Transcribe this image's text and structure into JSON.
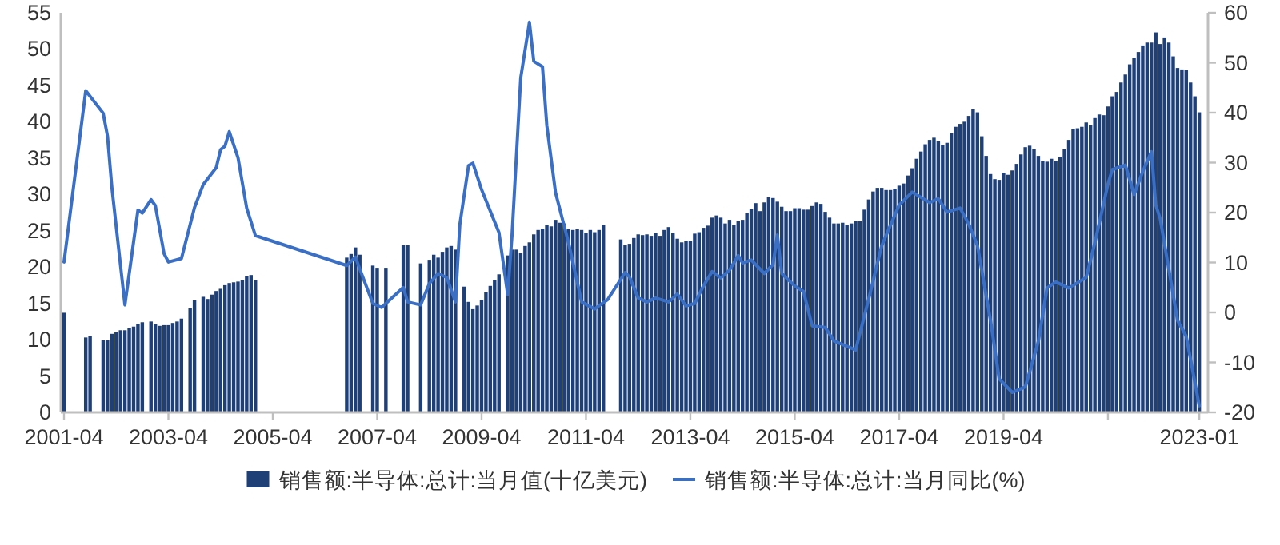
{
  "chart_data": {
    "type": "bar",
    "xlim": [
      "2001-04",
      "2023-03"
    ],
    "xticks": [
      "2001-04",
      "2003-04",
      "2005-04",
      "2007-04",
      "2009-04",
      "2011-04",
      "2013-04",
      "2015-04",
      "2017-04",
      "2019-04",
      {
        "value": "2021-04",
        "label": null
      },
      "2023-01"
    ],
    "ylim": [
      0,
      55
    ],
    "yticks": [
      0,
      5,
      10,
      15,
      20,
      25,
      30,
      35,
      40,
      45,
      50,
      55
    ],
    "y2lim": [
      -20,
      60
    ],
    "y2ticks": [
      -20,
      -10,
      0,
      10,
      20,
      30,
      40,
      50,
      60
    ],
    "grid": false,
    "legend": "bottom",
    "series": [
      {
        "name": "销售额:半导体:总计:当月值(十亿美元)",
        "color": "#1f3f77",
        "x": [
          "2001-04",
          "2001-09",
          "2001-10",
          "2002-01",
          "2002-02",
          "2002-03",
          "2002-04",
          "2002-05",
          "2002-06",
          "2002-07",
          "2002-08",
          "2002-09",
          "2002-10",
          "2002-12",
          "2003-01",
          "2003-02",
          "2003-03",
          "2003-04",
          "2003-05",
          "2003-06",
          "2003-07",
          "2003-09",
          "2003-10",
          "2003-12",
          "2004-01",
          "2004-02",
          "2004-03",
          "2004-04",
          "2004-05",
          "2004-06",
          "2004-07",
          "2004-08",
          "2004-09",
          "2004-10",
          "2004-11",
          "2004-12",
          "2006-09",
          "2006-10",
          "2006-11",
          "2006-12",
          "2007-03",
          "2007-04",
          "2007-06",
          "2007-10",
          "2007-11",
          "2008-02",
          "2008-04",
          "2008-05",
          "2008-06",
          "2008-07",
          "2008-08",
          "2008-09",
          "2008-10",
          "2008-12",
          "2009-01",
          "2009-02",
          "2009-03",
          "2009-04",
          "2009-05",
          "2009-06",
          "2009-07",
          "2009-08",
          "2009-10",
          "2009-11",
          "2009-12",
          "2010-01",
          "2010-02",
          "2010-03",
          "2010-04",
          "2010-05",
          "2010-06",
          "2010-07",
          "2010-08",
          "2010-09",
          "2010-10",
          "2010-11",
          "2010-12",
          "2011-01",
          "2011-02",
          "2011-03",
          "2011-04",
          "2011-05",
          "2011-06",
          "2011-07",
          "2011-08",
          "2011-12",
          "2012-01",
          "2012-02",
          "2012-03",
          "2012-04",
          "2012-05",
          "2012-06",
          "2012-07",
          "2012-08",
          "2012-09",
          "2012-10",
          "2012-11",
          "2012-12",
          "2013-01",
          "2013-02",
          "2013-03",
          "2013-04",
          "2013-05",
          "2013-06",
          "2013-07",
          "2013-08",
          "2013-09",
          "2013-10",
          "2013-11",
          "2013-12",
          "2014-01",
          "2014-02",
          "2014-03",
          "2014-04",
          "2014-05",
          "2014-06",
          "2014-07",
          "2014-08",
          "2014-09",
          "2014-10",
          "2014-11",
          "2014-12",
          "2015-01",
          "2015-02",
          "2015-03",
          "2015-04",
          "2015-05",
          "2015-06",
          "2015-07",
          "2015-08",
          "2015-09",
          "2015-10",
          "2015-11",
          "2015-12",
          "2016-01",
          "2016-02",
          "2016-03",
          "2016-04",
          "2016-05",
          "2016-06",
          "2016-07",
          "2016-08",
          "2016-09",
          "2016-10",
          "2016-11",
          "2016-12",
          "2017-01",
          "2017-02",
          "2017-03",
          "2017-04",
          "2017-05",
          "2017-06",
          "2017-07",
          "2017-08",
          "2017-09",
          "2017-10",
          "2017-11",
          "2017-12",
          "2018-01",
          "2018-02",
          "2018-03",
          "2018-04",
          "2018-05",
          "2018-06",
          "2018-07",
          "2018-08",
          "2018-09",
          "2018-10",
          "2018-11",
          "2018-12",
          "2019-01",
          "2019-02",
          "2019-03",
          "2019-04",
          "2019-05",
          "2019-06",
          "2019-07",
          "2019-08",
          "2019-09",
          "2019-10",
          "2019-11",
          "2019-12",
          "2020-01",
          "2020-02",
          "2020-03",
          "2020-04",
          "2020-05",
          "2020-06",
          "2020-07",
          "2020-08",
          "2020-09",
          "2020-10",
          "2020-11",
          "2020-12",
          "2021-01",
          "2021-02",
          "2021-03",
          "2021-04",
          "2021-05",
          "2021-06",
          "2021-07",
          "2021-08",
          "2021-09",
          "2021-10",
          "2021-11",
          "2021-12",
          "2022-01",
          "2022-02",
          "2022-03",
          "2022-04",
          "2022-05",
          "2022-06",
          "2022-07",
          "2022-08",
          "2022-09",
          "2022-10",
          "2022-11",
          "2022-12",
          "2023-01"
        ],
        "values": [
          13.7,
          10.3,
          10.5,
          9.9,
          9.9,
          10.8,
          11.0,
          11.3,
          11.3,
          11.6,
          11.8,
          12.2,
          12.4,
          12.5,
          12.1,
          11.9,
          12.0,
          12.0,
          12.3,
          12.5,
          12.9,
          14.3,
          15.4,
          15.9,
          15.6,
          16.2,
          16.7,
          17.0,
          17.5,
          17.8,
          17.9,
          18.0,
          18.2,
          18.7,
          18.9,
          18.2,
          21.3,
          21.8,
          22.7,
          21.7,
          20.2,
          19.9,
          19.9,
          23.0,
          23.0,
          20.5,
          21.0,
          21.7,
          21.3,
          22.1,
          22.7,
          22.9,
          22.4,
          17.3,
          15.2,
          14.2,
          14.7,
          15.5,
          16.5,
          17.4,
          18.2,
          19.0,
          21.6,
          22.4,
          22.4,
          21.9,
          22.9,
          23.4,
          24.5,
          25.1,
          25.3,
          25.8,
          25.6,
          26.5,
          26.1,
          26.0,
          25.2,
          25.1,
          25.2,
          25.1,
          24.7,
          25.1,
          24.8,
          25.1,
          25.8,
          23.8,
          23.0,
          23.2,
          24.0,
          24.5,
          24.4,
          24.5,
          24.3,
          24.7,
          24.3,
          25.1,
          25.5,
          24.7,
          23.9,
          23.4,
          23.6,
          23.6,
          24.6,
          24.8,
          25.4,
          25.7,
          26.8,
          27.1,
          26.8,
          26.0,
          26.5,
          25.8,
          26.3,
          26.5,
          27.4,
          28.0,
          28.8,
          27.7,
          28.9,
          29.6,
          29.5,
          29.0,
          28.3,
          27.7,
          27.7,
          28.1,
          28.1,
          27.9,
          27.9,
          28.4,
          28.9,
          28.7,
          27.6,
          26.8,
          26.0,
          26.0,
          26.1,
          25.8,
          26.0,
          26.3,
          26.3,
          27.9,
          29.3,
          30.4,
          30.9,
          30.9,
          30.6,
          30.6,
          30.8,
          31.2,
          31.5,
          32.6,
          33.6,
          34.9,
          35.9,
          36.9,
          37.5,
          37.8,
          37.3,
          36.8,
          37.1,
          38.4,
          39.3,
          39.7,
          40.0,
          40.8,
          41.7,
          41.3,
          38.0,
          35.3,
          32.8,
          32.1,
          32.0,
          33.0,
          32.7,
          33.3,
          34.2,
          35.5,
          36.5,
          36.7,
          36.2,
          35.3,
          34.6,
          34.5,
          34.9,
          34.6,
          35.2,
          36.2,
          37.5,
          39.0,
          39.1,
          39.3,
          39.9,
          39.5,
          40.5,
          41.0,
          40.9,
          42.1,
          43.5,
          44.1,
          45.4,
          46.5,
          47.9,
          48.8,
          49.6,
          50.5,
          50.9,
          50.9,
          52.3,
          50.7,
          51.6,
          50.9,
          49.0,
          47.4,
          47.2,
          47.1,
          45.4,
          43.5,
          41.3
        ]
      },
      {
        "name": "销售额:半导体:总计:当月同比(%)",
        "type": "line",
        "axis": "y2",
        "color": "#3a6fc4",
        "line_style": "solid",
        "marker": "none",
        "x": [
          "2001-04",
          "2001-09",
          "2002-01",
          "2002-02",
          "2002-03",
          "2002-06",
          "2002-09",
          "2002-10",
          "2002-12",
          "2003-01",
          "2003-03",
          "2003-04",
          "2003-07",
          "2003-10",
          "2003-12",
          "2004-03",
          "2004-04",
          "2004-05",
          "2004-06",
          "2004-08",
          "2004-10",
          "2004-12",
          "2006-09",
          "2006-11",
          "2006-12",
          "2007-03",
          "2007-05",
          "2007-10",
          "2007-11",
          "2008-02",
          "2008-04",
          "2008-06",
          "2008-08",
          "2008-10",
          "2008-11",
          "2009-01",
          "2009-02",
          "2009-04",
          "2009-08",
          "2009-10",
          "2009-11",
          "2010-01",
          "2010-03",
          "2010-04",
          "2010-06",
          "2010-07",
          "2010-09",
          "2010-12",
          "2011-03",
          "2011-06",
          "2011-09",
          "2012-01",
          "2012-02",
          "2012-04",
          "2012-06",
          "2012-08",
          "2012-11",
          "2013-01",
          "2013-03",
          "2013-05",
          "2013-07",
          "2013-09",
          "2013-11",
          "2014-01",
          "2014-03",
          "2014-04",
          "2014-06",
          "2014-09",
          "2014-11",
          "2014-12",
          "2015-01",
          "2015-04",
          "2015-06",
          "2015-08",
          "2015-11",
          "2016-01",
          "2016-06",
          "2016-09",
          "2016-12",
          "2017-04",
          "2017-07",
          "2017-11",
          "2018-01",
          "2018-03",
          "2018-06",
          "2018-08",
          "2018-10",
          "2019-01",
          "2019-03",
          "2019-06",
          "2019-09",
          "2019-12",
          "2020-02",
          "2020-04",
          "2020-07",
          "2020-11",
          "2021-01",
          "2021-04",
          "2021-05",
          "2021-08",
          "2021-10",
          "2021-12",
          "2022-02",
          "2022-03",
          "2022-04",
          "2022-08",
          "2022-10",
          "2023-01"
        ],
        "values": [
          10.1,
          44.4,
          39.9,
          35.3,
          25.1,
          1.5,
          20.5,
          19.9,
          22.6,
          21.4,
          11.8,
          10.1,
          10.8,
          21.0,
          25.6,
          29.0,
          32.6,
          33.3,
          36.2,
          31.0,
          20.9,
          15.4,
          9.4,
          11.1,
          8.7,
          1.8,
          1.0,
          5.0,
          2.1,
          1.5,
          5.8,
          7.8,
          7.0,
          2.1,
          17.6,
          29.4,
          29.9,
          24.6,
          16.0,
          3.6,
          15.5,
          47.0,
          58.1,
          50.3,
          49.2,
          37.4,
          24.0,
          13.9,
          2.1,
          0.7,
          2.6,
          8.0,
          7.1,
          2.9,
          2.1,
          2.9,
          2.1,
          3.7,
          1.3,
          1.8,
          5.3,
          8.2,
          6.9,
          8.5,
          11.4,
          9.9,
          10.5,
          7.8,
          9.6,
          15.5,
          7.8,
          5.3,
          4.2,
          -2.7,
          -3.0,
          -5.7,
          -7.5,
          2.7,
          13.4,
          21.5,
          24.1,
          22.0,
          22.8,
          20.1,
          20.9,
          17.7,
          13.4,
          -1.6,
          -13.3,
          -16.0,
          -14.9,
          -5.8,
          4.9,
          6.1,
          4.9,
          7.0,
          14.0,
          25.7,
          28.6,
          29.5,
          23.6,
          28.2,
          32.2,
          21.5,
          18.8,
          -1.6,
          -4.8,
          -18.7
        ]
      }
    ]
  }
}
